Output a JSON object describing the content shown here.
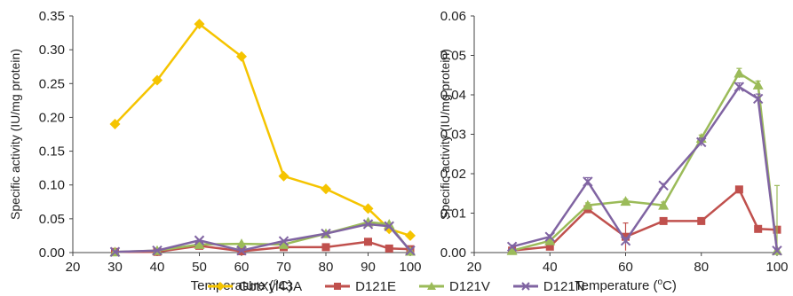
{
  "chart_data": [
    {
      "type": "line",
      "xlabel": "Temperature (",
      "xlabel_sup": "o",
      "xlabel_unit": "C)",
      "ylabel": "Specific activity (IU/mg protein)",
      "xlim": [
        20,
        100
      ],
      "ylim": [
        0,
        0.35
      ],
      "xticks": [
        "20",
        "30",
        "40",
        "50",
        "60",
        "70",
        "80",
        "90",
        "100"
      ],
      "yticks": [
        "0.00",
        "0.05",
        "0.10",
        "0.15",
        "0.20",
        "0.25",
        "0.30",
        "0.35"
      ],
      "grid": false,
      "series": [
        {
          "name": "GbtXyl43A",
          "color": "#f5c400",
          "marker": "diamond",
          "x": [
            30,
            40,
            50,
            60,
            70,
            80,
            90,
            95,
            100
          ],
          "values": [
            0.19,
            0.255,
            0.338,
            0.29,
            0.113,
            0.094,
            0.065,
            0.035,
            0.025
          ]
        },
        {
          "name": "D121E",
          "color": "#c0504d",
          "marker": "square",
          "x": [
            30,
            40,
            50,
            60,
            70,
            80,
            90,
            95,
            100
          ],
          "values": [
            0.001,
            0.001,
            0.01,
            0.002,
            0.008,
            0.008,
            0.016,
            0.006,
            0.005
          ]
        },
        {
          "name": "D121V",
          "color": "#9bbb59",
          "marker": "triangle",
          "x": [
            30,
            40,
            50,
            60,
            70,
            80,
            90,
            95,
            100
          ],
          "values": [
            0.001,
            0.003,
            0.012,
            0.013,
            0.012,
            0.028,
            0.045,
            0.042,
            0.002
          ]
        },
        {
          "name": "D121N",
          "color": "#8064a2",
          "marker": "x",
          "x": [
            30,
            40,
            50,
            60,
            70,
            80,
            90,
            95,
            100
          ],
          "values": [
            0.001,
            0.003,
            0.018,
            0.003,
            0.017,
            0.028,
            0.042,
            0.039,
            0.003
          ]
        }
      ]
    },
    {
      "type": "line",
      "xlabel": "Temperature (",
      "xlabel_sup": "o",
      "xlabel_unit": "C)",
      "ylabel": "Specific activity (IU/mg protein)",
      "xlim": [
        20,
        100
      ],
      "ylim": [
        0,
        0.06
      ],
      "xticks": [
        "20",
        "40",
        "60",
        "80",
        "100"
      ],
      "yticks": [
        "0.00",
        "0.01",
        "0.02",
        "0.03",
        "0.04",
        "0.05",
        "0.06"
      ],
      "grid": false,
      "series": [
        {
          "name": "D121E",
          "color": "#c0504d",
          "marker": "square",
          "x": [
            30,
            40,
            50,
            60,
            70,
            80,
            90,
            95,
            100
          ],
          "values": [
            0.0005,
            0.0015,
            0.011,
            0.004,
            0.008,
            0.008,
            0.016,
            0.006,
            0.0058
          ],
          "errors": [
            0.0003,
            0.0005,
            0.0008,
            0.0035,
            0.0006,
            0.0005,
            0.0008,
            0.0006,
            0.0005
          ]
        },
        {
          "name": "D121V",
          "color": "#9bbb59",
          "marker": "triangle",
          "x": [
            30,
            40,
            50,
            60,
            70,
            80,
            90,
            95,
            100
          ],
          "values": [
            0.0005,
            0.003,
            0.012,
            0.013,
            0.012,
            0.029,
            0.0455,
            0.0425,
            0.0005
          ],
          "errors": [
            0.0003,
            0.0005,
            0.0006,
            0.0005,
            0.0008,
            0.0008,
            0.0012,
            0.001,
            0.0165
          ]
        },
        {
          "name": "D121N",
          "color": "#8064a2",
          "marker": "x",
          "x": [
            30,
            40,
            50,
            60,
            70,
            80,
            90,
            95,
            100
          ],
          "values": [
            0.0015,
            0.004,
            0.018,
            0.003,
            0.017,
            0.028,
            0.042,
            0.039,
            0.0005
          ],
          "errors": [
            0.0004,
            0.0005,
            0.001,
            0.0008,
            0.0005,
            0.001,
            0.001,
            0.0012,
            0.0003
          ]
        }
      ]
    }
  ],
  "legend": [
    {
      "label": "GbtXyl43A",
      "color": "#f5c400",
      "marker": "diamond"
    },
    {
      "label": "D121E",
      "color": "#c0504d",
      "marker": "square"
    },
    {
      "label": "D121V",
      "color": "#9bbb59",
      "marker": "triangle"
    },
    {
      "label": "D121N",
      "color": "#8064a2",
      "marker": "x"
    }
  ]
}
